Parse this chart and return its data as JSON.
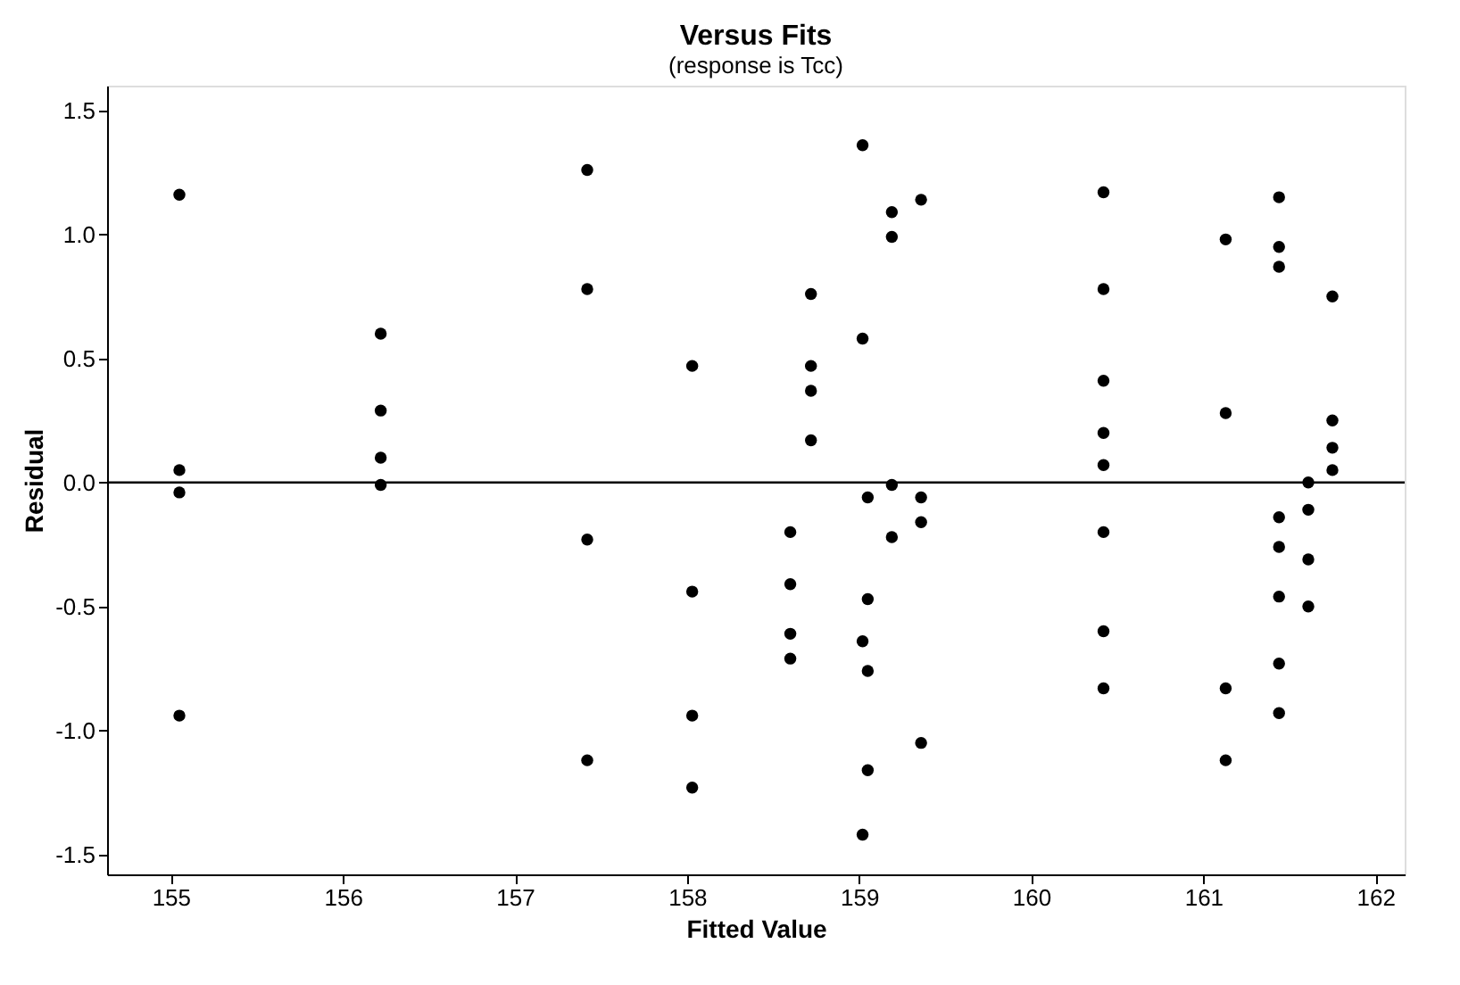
{
  "chart_data": {
    "type": "scatter",
    "title": "Versus Fits",
    "subtitle": "(response is Tcc)",
    "xlabel": "Fitted Value",
    "ylabel": "Residual",
    "x": [
      155.05,
      155.05,
      155.05,
      155.05,
      156.22,
      156.22,
      156.22,
      156.22,
      157.42,
      157.42,
      157.42,
      157.42,
      158.03,
      158.03,
      158.03,
      158.03,
      158.6,
      158.6,
      158.6,
      158.6,
      158.72,
      158.72,
      158.72,
      158.72,
      159.02,
      159.02,
      159.02,
      159.02,
      159.05,
      159.05,
      159.05,
      159.05,
      159.19,
      159.19,
      159.19,
      159.19,
      159.36,
      159.36,
      159.36,
      159.36,
      160.42,
      160.42,
      160.42,
      160.42,
      160.42,
      160.42,
      160.42,
      160.42,
      161.13,
      161.13,
      161.13,
      161.13,
      161.44,
      161.44,
      161.44,
      161.44,
      161.44,
      161.44,
      161.44,
      161.44,
      161.61,
      161.61,
      161.61,
      161.61,
      161.75,
      161.75,
      161.75,
      161.75
    ],
    "series": [
      {
        "color": "#000000",
        "values": [
          1.16,
          0.05,
          -0.04,
          -0.94,
          0.6,
          0.29,
          0.1,
          -0.01,
          1.26,
          0.78,
          -0.23,
          -1.12,
          0.47,
          -0.44,
          -0.94,
          -1.23,
          -0.2,
          -0.41,
          -0.61,
          -0.71,
          0.76,
          0.47,
          0.37,
          0.17,
          1.36,
          0.58,
          -0.64,
          -1.42,
          -0.06,
          -0.47,
          -0.76,
          -1.16,
          1.09,
          0.99,
          -0.01,
          -0.22,
          1.14,
          -0.06,
          -0.16,
          -1.05,
          1.17,
          0.78,
          0.41,
          0.2,
          0.07,
          -0.2,
          -0.6,
          -0.83,
          0.98,
          0.28,
          -0.83,
          -1.12,
          1.15,
          0.95,
          0.87,
          -0.14,
          -0.26,
          -0.46,
          -0.73,
          -0.93,
          0.0,
          -0.11,
          -0.31,
          -0.5,
          0.75,
          0.25,
          0.14,
          0.05
        ]
      }
    ],
    "xlim": [
      154.63,
      162.17
    ],
    "xticks": [
      155,
      156,
      157,
      158,
      159,
      160,
      161,
      162
    ],
    "ylim": [
      -1.58,
      1.6
    ],
    "yticks": [
      {
        "value": -1.5,
        "label": "-1.5"
      },
      {
        "value": -1.0,
        "label": "-1.0"
      },
      {
        "value": -0.5,
        "label": "-0.5"
      },
      {
        "value": 0.0,
        "label": "0.0"
      },
      {
        "value": 0.5,
        "label": "0.5"
      },
      {
        "value": 1.0,
        "label": "1.0"
      },
      {
        "value": 1.5,
        "label": "1.5"
      }
    ],
    "ref_lines": [
      {
        "axis": "y",
        "value": 0.0,
        "color": "#000000",
        "line_style": "solid"
      }
    ],
    "marker": "circle",
    "grid": false
  }
}
